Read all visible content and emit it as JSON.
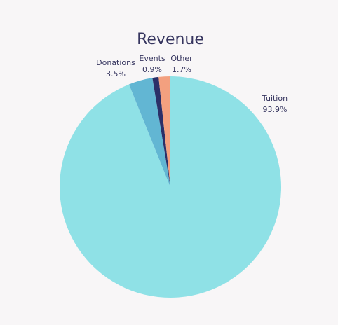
{
  "chart_data": {
    "type": "pie",
    "title": "Revenue",
    "start_angle_deg": 0,
    "direction": "clockwise",
    "slices": [
      {
        "label": "Tuition",
        "value": 93.9,
        "value_label": "93.9%",
        "color": "#8fe1e6"
      },
      {
        "label": "Donations",
        "value": 3.5,
        "value_label": "3.5%",
        "color": "#62b6d3"
      },
      {
        "label": "Events",
        "value": 0.9,
        "value_label": "0.9%",
        "color": "#2b2f68"
      },
      {
        "label": "Other",
        "value": 1.7,
        "value_label": "1.7%",
        "color": "#f3a07f"
      }
    ]
  }
}
